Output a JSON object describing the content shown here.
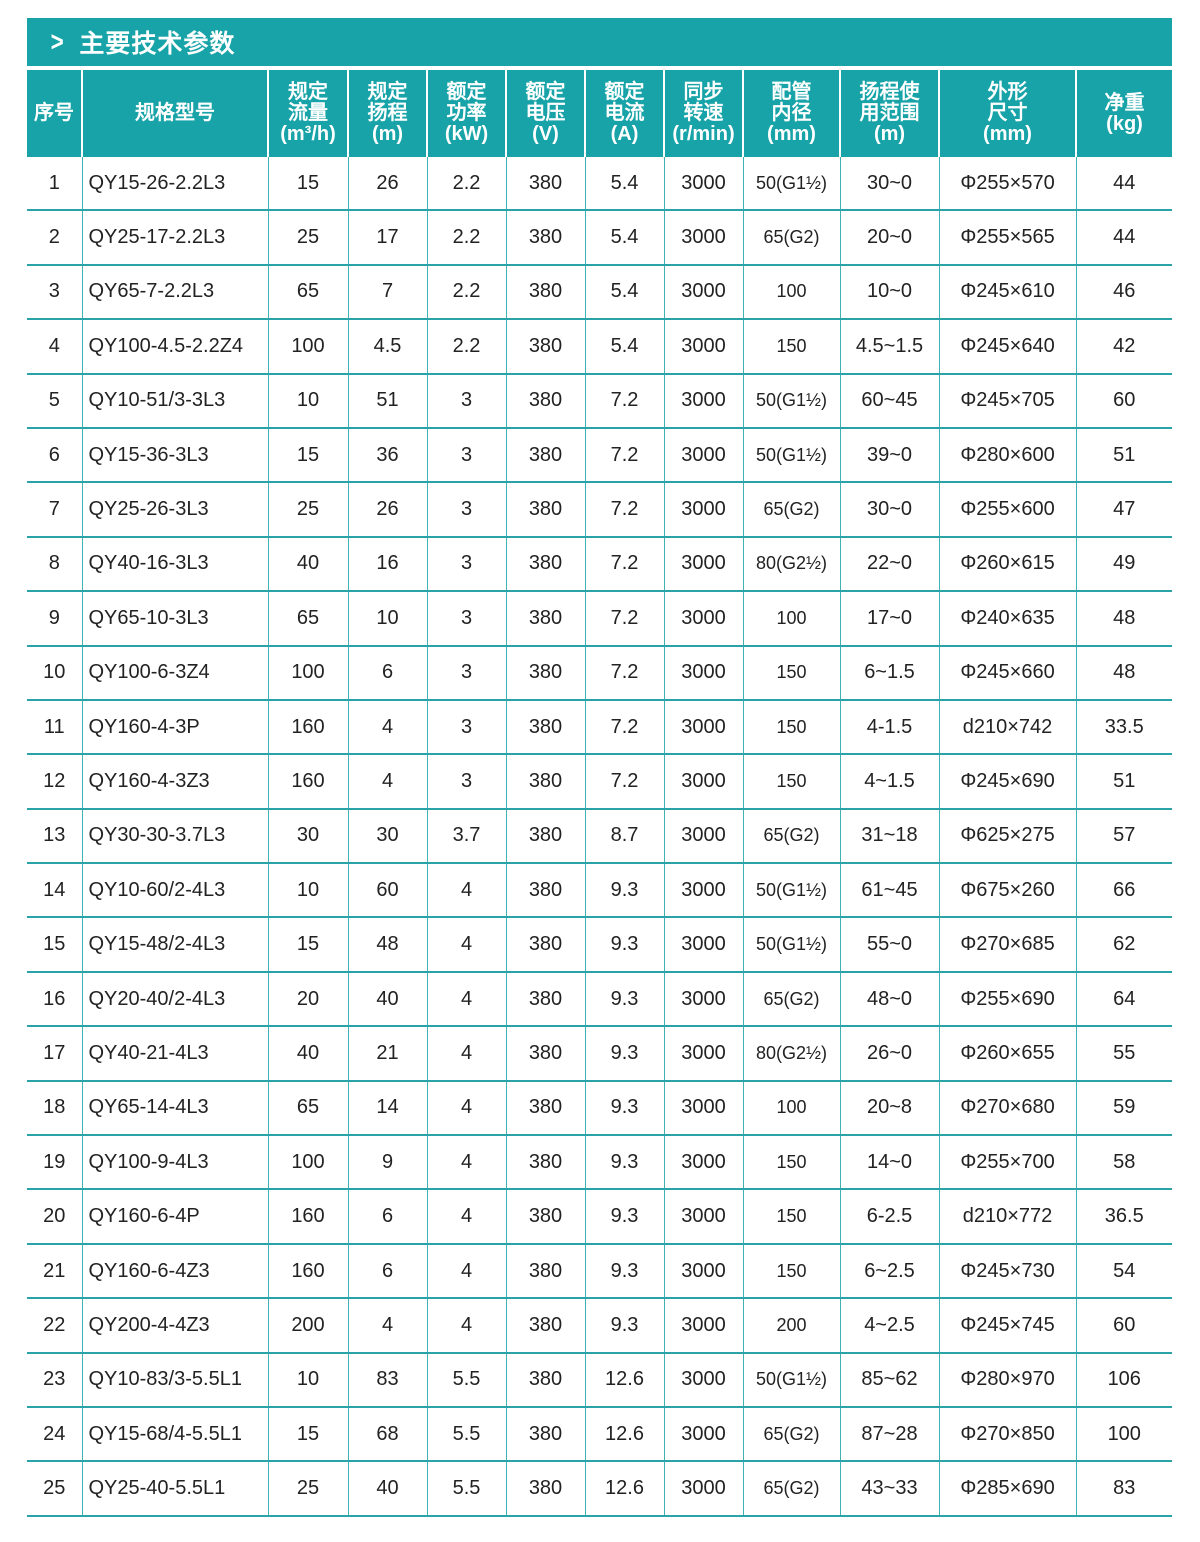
{
  "title": "主要技术参数",
  "title_icon": "chevron-right-icon",
  "colors": {
    "accent": "#17a3a7"
  },
  "headers": [
    [
      "序号"
    ],
    [
      "规格型号"
    ],
    [
      "规定",
      "流量",
      "(m³/h)"
    ],
    [
      "规定",
      "扬程",
      "(m)"
    ],
    [
      "额定",
      "功率",
      "(kW)"
    ],
    [
      "额定",
      "电压",
      "(V)"
    ],
    [
      "额定",
      "电流",
      "(A)"
    ],
    [
      "同步",
      "转速",
      "(r/min)"
    ],
    [
      "配管",
      "内径",
      "(mm)"
    ],
    [
      "扬程使",
      "用范围",
      "(m)"
    ],
    [
      "外形",
      "尺寸",
      "(mm)"
    ],
    [
      "净重",
      "(kg)"
    ]
  ],
  "rows": [
    [
      "1",
      "QY15-26-2.2L3",
      "15",
      "26",
      "2.2",
      "380",
      "5.4",
      "3000",
      "50(G1½)",
      "30~0",
      "Φ255×570",
      "44"
    ],
    [
      "2",
      "QY25-17-2.2L3",
      "25",
      "17",
      "2.2",
      "380",
      "5.4",
      "3000",
      "65(G2)",
      "20~0",
      "Φ255×565",
      "44"
    ],
    [
      "3",
      "QY65-7-2.2L3",
      "65",
      "7",
      "2.2",
      "380",
      "5.4",
      "3000",
      "100",
      "10~0",
      "Φ245×610",
      "46"
    ],
    [
      "4",
      "QY100-4.5-2.2Z4",
      "100",
      "4.5",
      "2.2",
      "380",
      "5.4",
      "3000",
      "150",
      "4.5~1.5",
      "Φ245×640",
      "42"
    ],
    [
      "5",
      "QY10-51/3-3L3",
      "10",
      "51",
      "3",
      "380",
      "7.2",
      "3000",
      "50(G1½)",
      "60~45",
      "Φ245×705",
      "60"
    ],
    [
      "6",
      "QY15-36-3L3",
      "15",
      "36",
      "3",
      "380",
      "7.2",
      "3000",
      "50(G1½)",
      "39~0",
      "Φ280×600",
      "51"
    ],
    [
      "7",
      "QY25-26-3L3",
      "25",
      "26",
      "3",
      "380",
      "7.2",
      "3000",
      "65(G2)",
      "30~0",
      "Φ255×600",
      "47"
    ],
    [
      "8",
      "QY40-16-3L3",
      "40",
      "16",
      "3",
      "380",
      "7.2",
      "3000",
      "80(G2½)",
      "22~0",
      "Φ260×615",
      "49"
    ],
    [
      "9",
      "QY65-10-3L3",
      "65",
      "10",
      "3",
      "380",
      "7.2",
      "3000",
      "100",
      "17~0",
      "Φ240×635",
      "48"
    ],
    [
      "10",
      "QY100-6-3Z4",
      "100",
      "6",
      "3",
      "380",
      "7.2",
      "3000",
      "150",
      "6~1.5",
      "Φ245×660",
      "48"
    ],
    [
      "11",
      "QY160-4-3P",
      "160",
      "4",
      "3",
      "380",
      "7.2",
      "3000",
      "150",
      "4-1.5",
      "d210×742",
      "33.5"
    ],
    [
      "12",
      "QY160-4-3Z3",
      "160",
      "4",
      "3",
      "380",
      "7.2",
      "3000",
      "150",
      "4~1.5",
      "Φ245×690",
      "51"
    ],
    [
      "13",
      "QY30-30-3.7L3",
      "30",
      "30",
      "3.7",
      "380",
      "8.7",
      "3000",
      "65(G2)",
      "31~18",
      "Φ625×275",
      "57"
    ],
    [
      "14",
      "QY10-60/2-4L3",
      "10",
      "60",
      "4",
      "380",
      "9.3",
      "3000",
      "50(G1½)",
      "61~45",
      "Φ675×260",
      "66"
    ],
    [
      "15",
      "QY15-48/2-4L3",
      "15",
      "48",
      "4",
      "380",
      "9.3",
      "3000",
      "50(G1½)",
      "55~0",
      "Φ270×685",
      "62"
    ],
    [
      "16",
      "QY20-40/2-4L3",
      "20",
      "40",
      "4",
      "380",
      "9.3",
      "3000",
      "65(G2)",
      "48~0",
      "Φ255×690",
      "64"
    ],
    [
      "17",
      "QY40-21-4L3",
      "40",
      "21",
      "4",
      "380",
      "9.3",
      "3000",
      "80(G2½)",
      "26~0",
      "Φ260×655",
      "55"
    ],
    [
      "18",
      "QY65-14-4L3",
      "65",
      "14",
      "4",
      "380",
      "9.3",
      "3000",
      "100",
      "20~8",
      "Φ270×680",
      "59"
    ],
    [
      "19",
      "QY100-9-4L3",
      "100",
      "9",
      "4",
      "380",
      "9.3",
      "3000",
      "150",
      "14~0",
      "Φ255×700",
      "58"
    ],
    [
      "20",
      "QY160-6-4P",
      "160",
      "6",
      "4",
      "380",
      "9.3",
      "3000",
      "150",
      "6-2.5",
      "d210×772",
      "36.5"
    ],
    [
      "21",
      "QY160-6-4Z3",
      "160",
      "6",
      "4",
      "380",
      "9.3",
      "3000",
      "150",
      "6~2.5",
      "Φ245×730",
      "54"
    ],
    [
      "22",
      "QY200-4-4Z3",
      "200",
      "4",
      "4",
      "380",
      "9.3",
      "3000",
      "200",
      "4~2.5",
      "Φ245×745",
      "60"
    ],
    [
      "23",
      "QY10-83/3-5.5L1",
      "10",
      "83",
      "5.5",
      "380",
      "12.6",
      "3000",
      "50(G1½)",
      "85~62",
      "Φ280×970",
      "106"
    ],
    [
      "24",
      "QY15-68/4-5.5L1",
      "15",
      "68",
      "5.5",
      "380",
      "12.6",
      "3000",
      "65(G2)",
      "87~28",
      "Φ270×850",
      "100"
    ],
    [
      "25",
      "QY25-40-5.5L1",
      "25",
      "40",
      "5.5",
      "380",
      "12.6",
      "3000",
      "65(G2)",
      "43~33",
      "Φ285×690",
      "83"
    ]
  ]
}
